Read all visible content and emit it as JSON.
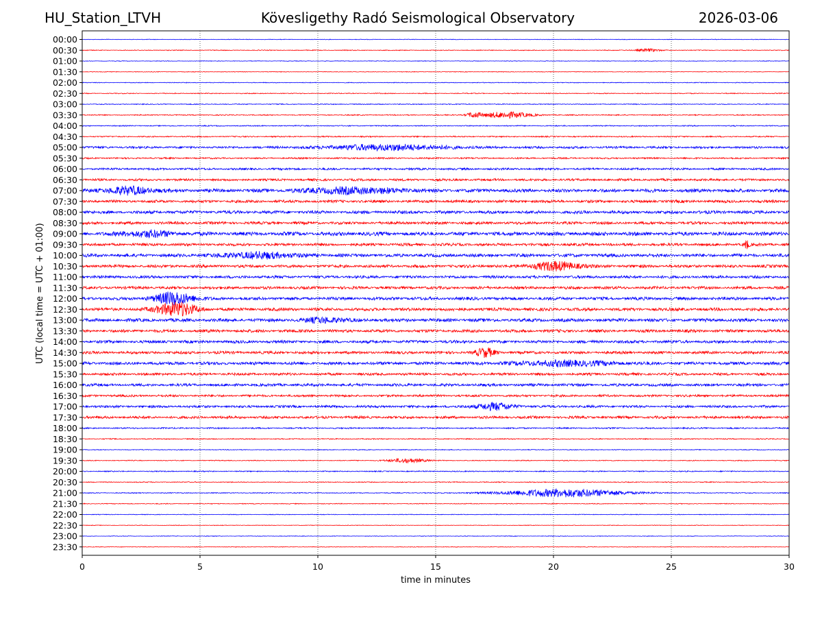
{
  "header": {
    "station": "HU_Station_LTVH",
    "observatory": "Kövesligethy Radó Seismological Observatory",
    "date": "2026-03-06"
  },
  "chart_data": {
    "type": "line",
    "title": "Kövesligethy Radó Seismological Observatory",
    "xlabel": "time in minutes",
    "ylabel": "UTC (local time = UTC + 01:00)",
    "xlim": [
      0,
      30
    ],
    "x_ticks": [
      "0",
      "5",
      "10",
      "15",
      "20",
      "25",
      "30"
    ],
    "row_labels": [
      "00:00",
      "00:30",
      "01:00",
      "01:30",
      "02:00",
      "02:30",
      "03:00",
      "03:30",
      "04:00",
      "04:30",
      "05:00",
      "05:30",
      "06:00",
      "06:30",
      "07:00",
      "07:30",
      "08:00",
      "08:30",
      "09:00",
      "09:30",
      "10:00",
      "10:30",
      "11:00",
      "11:30",
      "12:00",
      "12:30",
      "13:00",
      "13:30",
      "14:00",
      "14:30",
      "15:00",
      "15:30",
      "16:00",
      "16:30",
      "17:00",
      "17:30",
      "18:00",
      "18:30",
      "19:00",
      "19:30",
      "20:00",
      "20:30",
      "21:00",
      "21:30",
      "22:00",
      "22:30",
      "23:00",
      "23:30"
    ],
    "noise_level": [
      0.3,
      0.45,
      0.3,
      0.35,
      0.4,
      0.5,
      0.5,
      0.6,
      0.6,
      0.7,
      1.3,
      0.9,
      1.2,
      1.3,
      2.0,
      1.6,
      1.8,
      1.6,
      2.2,
      1.6,
      1.9,
      1.7,
      1.6,
      1.6,
      1.8,
      1.8,
      1.9,
      1.7,
      1.7,
      1.6,
      1.8,
      1.5,
      1.6,
      1.3,
      1.4,
      1.5,
      0.8,
      0.6,
      0.4,
      0.5,
      0.6,
      0.5,
      0.5,
      0.45,
      0.35,
      0.35,
      0.3,
      0.35
    ],
    "events": [
      {
        "row": 1,
        "minute": 24.0,
        "amp": 2.0,
        "dur": 0.5
      },
      {
        "row": 7,
        "minute": 18.0,
        "amp": 4.5,
        "dur": 1.0
      },
      {
        "row": 7,
        "minute": 16.6,
        "amp": 3.5,
        "dur": 0.3
      },
      {
        "row": 10,
        "minute": 13.0,
        "amp": 4.0,
        "dur": 2.5
      },
      {
        "row": 14,
        "minute": 2.0,
        "amp": 5.0,
        "dur": 1.0
      },
      {
        "row": 14,
        "minute": 11.5,
        "amp": 4.0,
        "dur": 2.0
      },
      {
        "row": 18,
        "minute": 2.8,
        "amp": 4.0,
        "dur": 1.0
      },
      {
        "row": 19,
        "minute": 28.2,
        "amp": 6.0,
        "dur": 0.1
      },
      {
        "row": 20,
        "minute": 7.5,
        "amp": 4.0,
        "dur": 1.5
      },
      {
        "row": 21,
        "minute": 20.1,
        "amp": 6.0,
        "dur": 1.0
      },
      {
        "row": 24,
        "minute": 3.9,
        "amp": 9.0,
        "dur": 0.8
      },
      {
        "row": 25,
        "minute": 4.0,
        "amp": 10.0,
        "dur": 0.8
      },
      {
        "row": 26,
        "minute": 10.3,
        "amp": 3.5,
        "dur": 0.8
      },
      {
        "row": 29,
        "minute": 17.1,
        "amp": 6.0,
        "dur": 0.4
      },
      {
        "row": 30,
        "minute": 20.5,
        "amp": 3.5,
        "dur": 2.0
      },
      {
        "row": 34,
        "minute": 17.5,
        "amp": 5.0,
        "dur": 0.8
      },
      {
        "row": 39,
        "minute": 13.8,
        "amp": 3.0,
        "dur": 0.8
      },
      {
        "row": 42,
        "minute": 20.5,
        "amp": 6.0,
        "dur": 2.5
      }
    ],
    "colors": {
      "even_rows": "#0000ff",
      "odd_rows": "#ff0000",
      "grid": "#000000"
    }
  }
}
